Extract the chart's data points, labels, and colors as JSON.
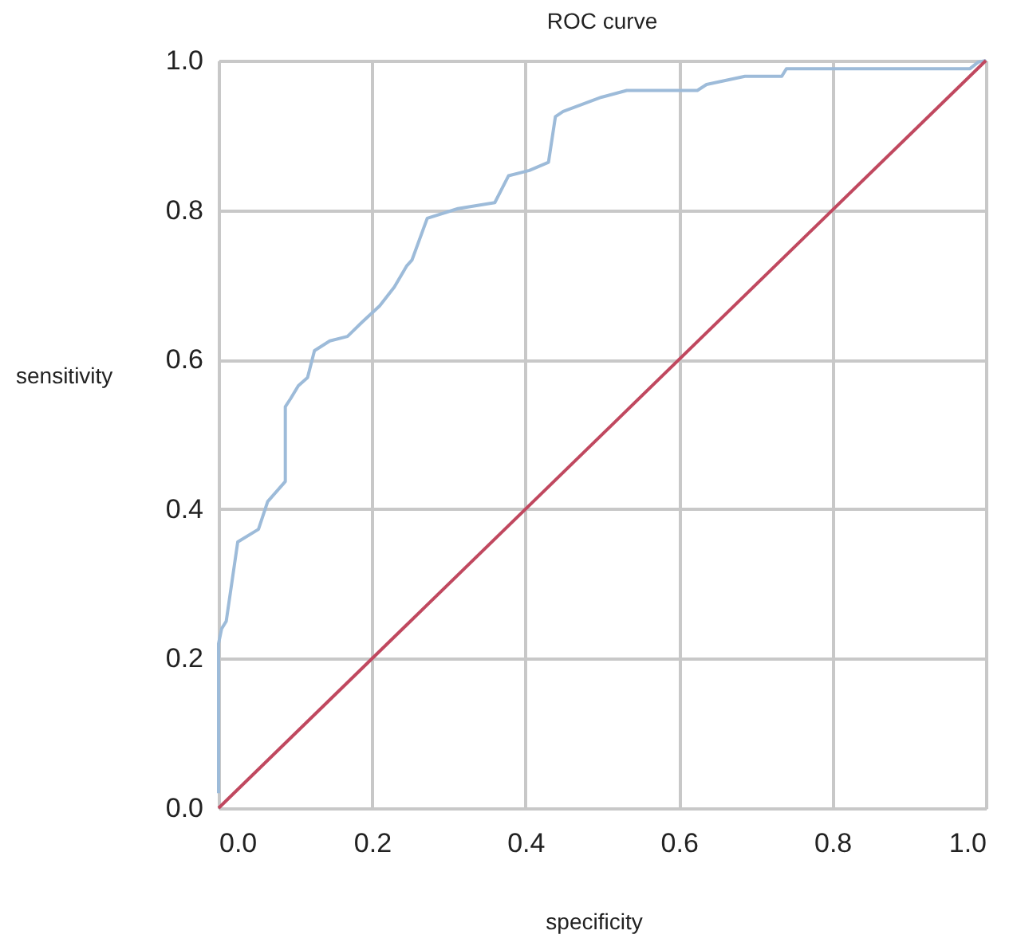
{
  "chart_data": {
    "type": "line",
    "title": "ROC curve",
    "xlabel": "specificity",
    "ylabel": "sensitivity",
    "xlim": [
      0,
      1
    ],
    "ylim": [
      0,
      1
    ],
    "xticks": [
      {
        "value": 0,
        "label": "0.0"
      },
      0.2,
      0.4,
      0.6,
      0.8,
      {
        "value": 1,
        "label": "1.0"
      }
    ],
    "yticks": [
      {
        "value": 0,
        "label": "0.0"
      },
      0.2,
      0.4,
      0.6,
      0.8,
      {
        "value": 1,
        "label": "1.0"
      }
    ],
    "grid": true,
    "marker": "none",
    "line_style": "solid",
    "series": [
      {
        "color": "#9dbbd9",
        "x": [
          0,
          0,
          0.004,
          0.01,
          0.025,
          0.052,
          0.064,
          0.087,
          0.087,
          0.094,
          0.104,
          0.116,
          0.125,
          0.145,
          0.168,
          0.187,
          0.21,
          0.229,
          0.245,
          0.252,
          0.272,
          0.312,
          0.36,
          0.378,
          0.405,
          0.43,
          0.439,
          0.449,
          0.499,
          0.532,
          0.624,
          0.636,
          0.686,
          0.734,
          0.74,
          0.979,
          0.99,
          1.0
        ],
        "values": [
          0.02,
          0.22,
          0.24,
          0.25,
          0.356,
          0.373,
          0.41,
          0.437,
          0.537,
          0.548,
          0.565,
          0.576,
          0.612,
          0.625,
          0.631,
          0.65,
          0.672,
          0.697,
          0.725,
          0.733,
          0.789,
          0.802,
          0.81,
          0.846,
          0.853,
          0.864,
          0.925,
          0.932,
          0.951,
          0.96,
          0.96,
          0.968,
          0.979,
          0.979,
          0.989,
          0.989,
          0.998,
          1.0
        ]
      },
      {
        "color": "#c0485f",
        "x": [
          0,
          1
        ],
        "values": [
          0,
          1
        ]
      }
    ]
  }
}
